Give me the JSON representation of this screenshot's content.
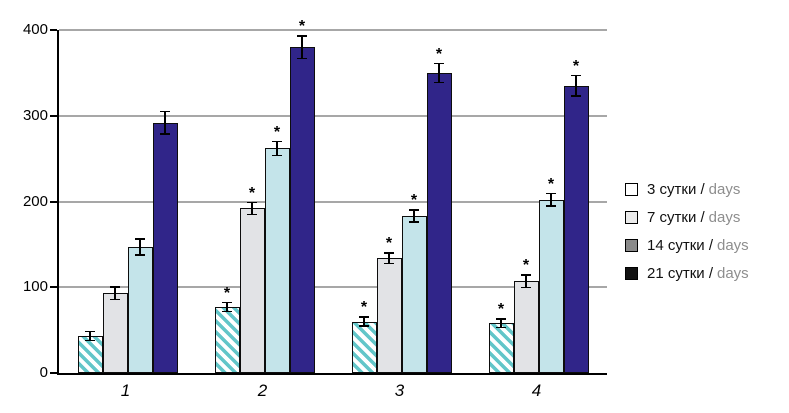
{
  "chart_data": {
    "type": "bar",
    "title": "",
    "categories": [
      "1",
      "2",
      "3",
      "4"
    ],
    "y_ticks": [
      0,
      100,
      200,
      300,
      400
    ],
    "ylim": [
      0,
      400
    ],
    "grid": "horizontal",
    "legend_position": "right",
    "significance_symbol": "*",
    "series": [
      {
        "name_ru": "3 сутки /",
        "name_en": "days",
        "values": [
          43,
          77,
          60,
          58
        ],
        "errors": [
          6,
          6,
          6,
          6
        ],
        "significant": [
          false,
          true,
          true,
          true
        ],
        "fill": "hatch",
        "hatch_bg": "#ffffff",
        "hatch_stripe": "#63c6c9",
        "legend_marker": "#ffffff"
      },
      {
        "name_ru": "7 сутки /",
        "name_en": "days",
        "values": [
          93,
          192,
          134,
          107
        ],
        "errors": [
          8,
          8,
          7,
          8
        ],
        "significant": [
          false,
          true,
          true,
          true
        ],
        "fill": "#e2e3e6",
        "legend_marker": "#ebebeb"
      },
      {
        "name_ru": "14 сутки /",
        "name_en": "days",
        "values": [
          147,
          262,
          183,
          202
        ],
        "errors": [
          10,
          9,
          8,
          8
        ],
        "significant": [
          false,
          true,
          true,
          true
        ],
        "fill": "#c4e4ea",
        "legend_marker": "#8a8a8a"
      },
      {
        "name_ru": "21 сутки /",
        "name_en": "days",
        "values": [
          292,
          380,
          350,
          335
        ],
        "errors": [
          14,
          14,
          12,
          13
        ],
        "significant": [
          false,
          true,
          true,
          true
        ],
        "fill": "#302589",
        "legend_marker": "#111111"
      }
    ],
    "style": {
      "axis_color": "#000000",
      "grid_color": "#a7a7a7",
      "bar_border_color": "#0d0d0d",
      "error_bar_color": "#000000",
      "legend_secondary_text_color": "#8e8e8e"
    }
  }
}
